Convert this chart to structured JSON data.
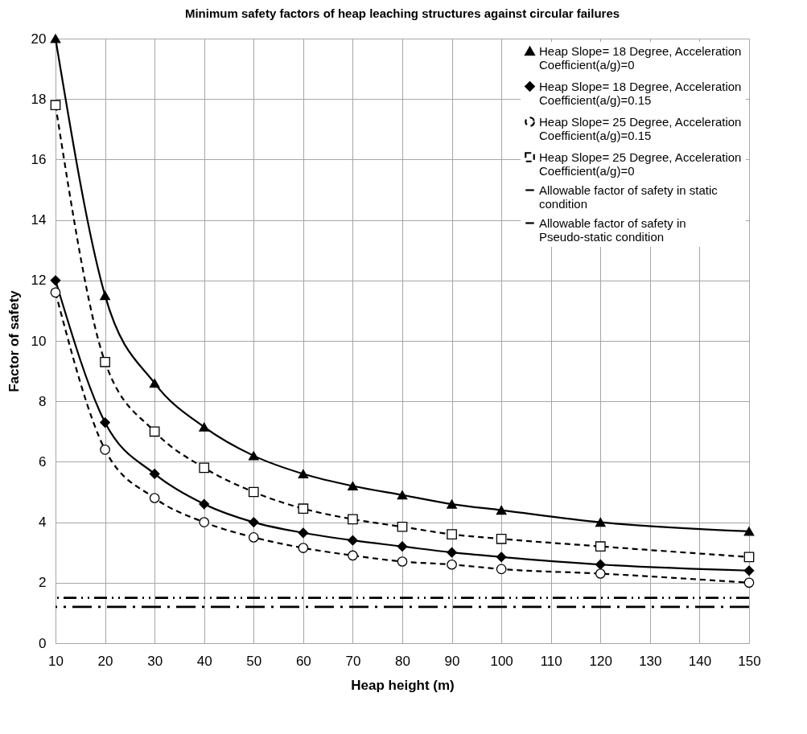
{
  "chart_data": {
    "type": "line",
    "title": "Minimum safety factors of heap leaching structures against circular failures",
    "xlabel": "Heap height (m)",
    "ylabel": "Factor of safety",
    "x": [
      10,
      20,
      30,
      40,
      50,
      60,
      70,
      80,
      90,
      100,
      120,
      150
    ],
    "xlim": [
      10,
      150
    ],
    "xticks": [
      10,
      20,
      30,
      40,
      50,
      60,
      70,
      80,
      90,
      100,
      110,
      120,
      130,
      140,
      150
    ],
    "ylim": [
      0,
      20
    ],
    "yticks": [
      0,
      2,
      4,
      6,
      8,
      10,
      12,
      14,
      16,
      18,
      20
    ],
    "grid": true,
    "legend": "top right",
    "series": [
      {
        "name": "Heap Slope= 18 Degree, Acceleration Coefficient(a/g)=0",
        "color": "#000000",
        "marker": "triangle",
        "line_style": "solid",
        "values": [
          20,
          11.5,
          8.6,
          7.15,
          6.2,
          5.6,
          5.2,
          4.9,
          4.6,
          4.4,
          4.0,
          3.7
        ]
      },
      {
        "name": "Heap Slope= 18 Degree, Acceleration Coefficient(a/g)=0.15",
        "color": "#000000",
        "marker": "diamond",
        "line_style": "solid",
        "values": [
          12,
          7.3,
          5.6,
          4.6,
          4.0,
          3.65,
          3.4,
          3.2,
          3.0,
          2.85,
          2.6,
          2.4
        ]
      },
      {
        "name": "Heap Slope= 25 Degree, Acceleration Coefficient(a/g)=0.15",
        "color": "#000000",
        "marker": "circle",
        "line_style": "dashed",
        "values": [
          11.6,
          6.4,
          4.8,
          4.0,
          3.5,
          3.15,
          2.9,
          2.7,
          2.6,
          2.45,
          2.3,
          2.0
        ]
      },
      {
        "name": "Heap Slope= 25 Degree, Acceleration Coefficient(a/g)=0",
        "color": "#000000",
        "marker": "square",
        "line_style": "dashed",
        "values": [
          17.8,
          9.3,
          7.0,
          5.8,
          5.0,
          4.45,
          4.1,
          3.85,
          3.6,
          3.45,
          3.2,
          2.85
        ]
      }
    ],
    "ref_lines": [
      {
        "axis": "y",
        "value": 1.5,
        "label": "Allowable factor of safety in static condition",
        "color": "#000000",
        "line_style": "dashed"
      },
      {
        "axis": "y",
        "value": 1.2,
        "label": "Allowable factor of safety in Pseudo-static condition",
        "color": "#000000",
        "line_style": "dotted"
      }
    ]
  }
}
